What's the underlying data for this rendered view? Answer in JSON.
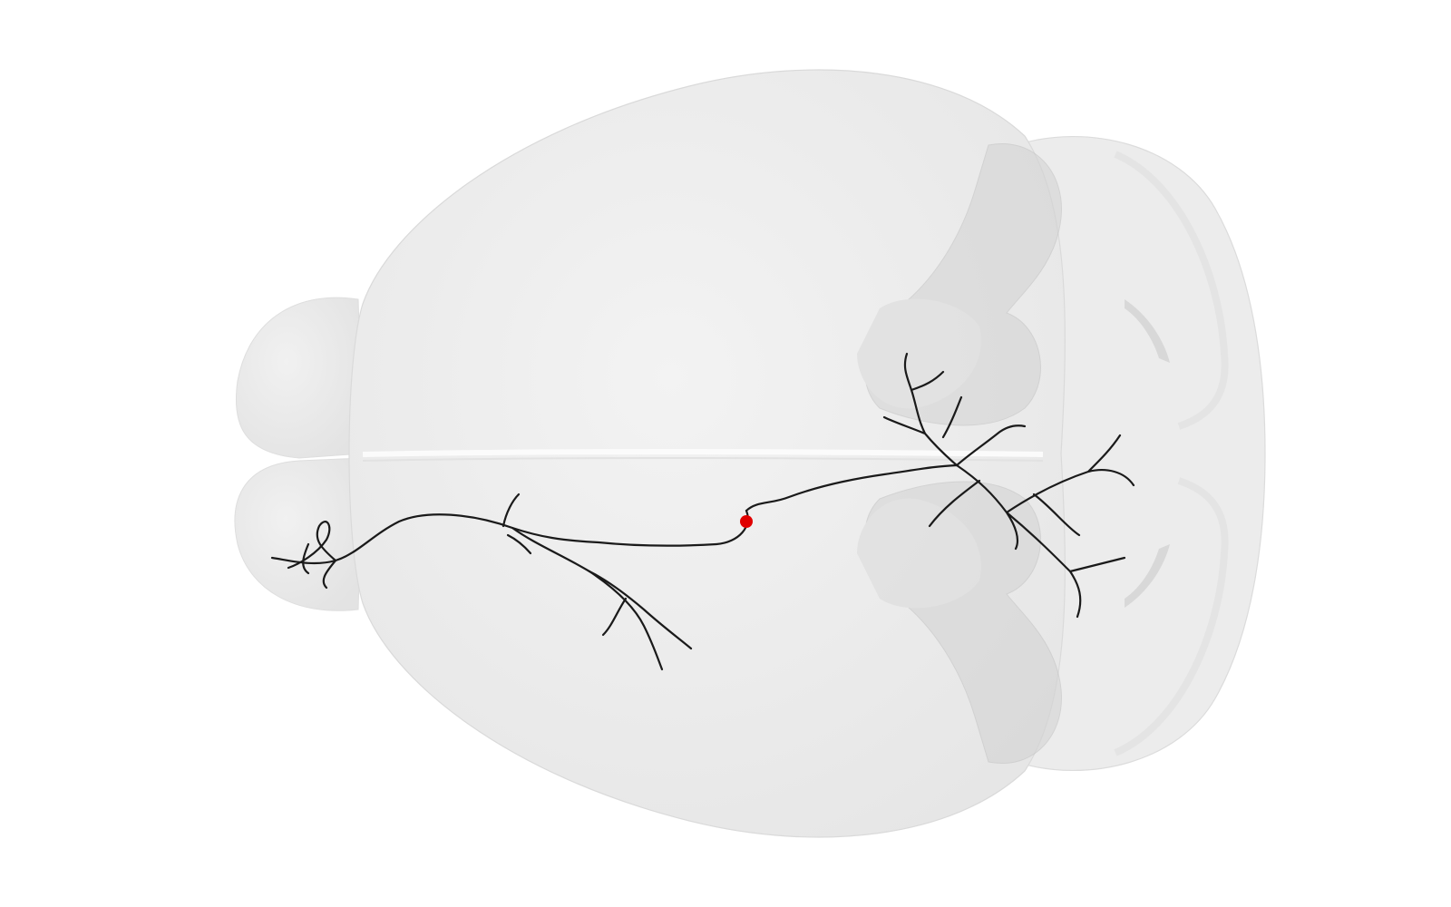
{
  "scene": {
    "background": "#ffffff",
    "brain_fill": "#ededed",
    "brain_edge": "#dcdcdc",
    "overlay_fill": "#d9d9d9",
    "neuron_color": "#1a1a1a",
    "soma_color": "#e00000"
  },
  "labels": {}
}
